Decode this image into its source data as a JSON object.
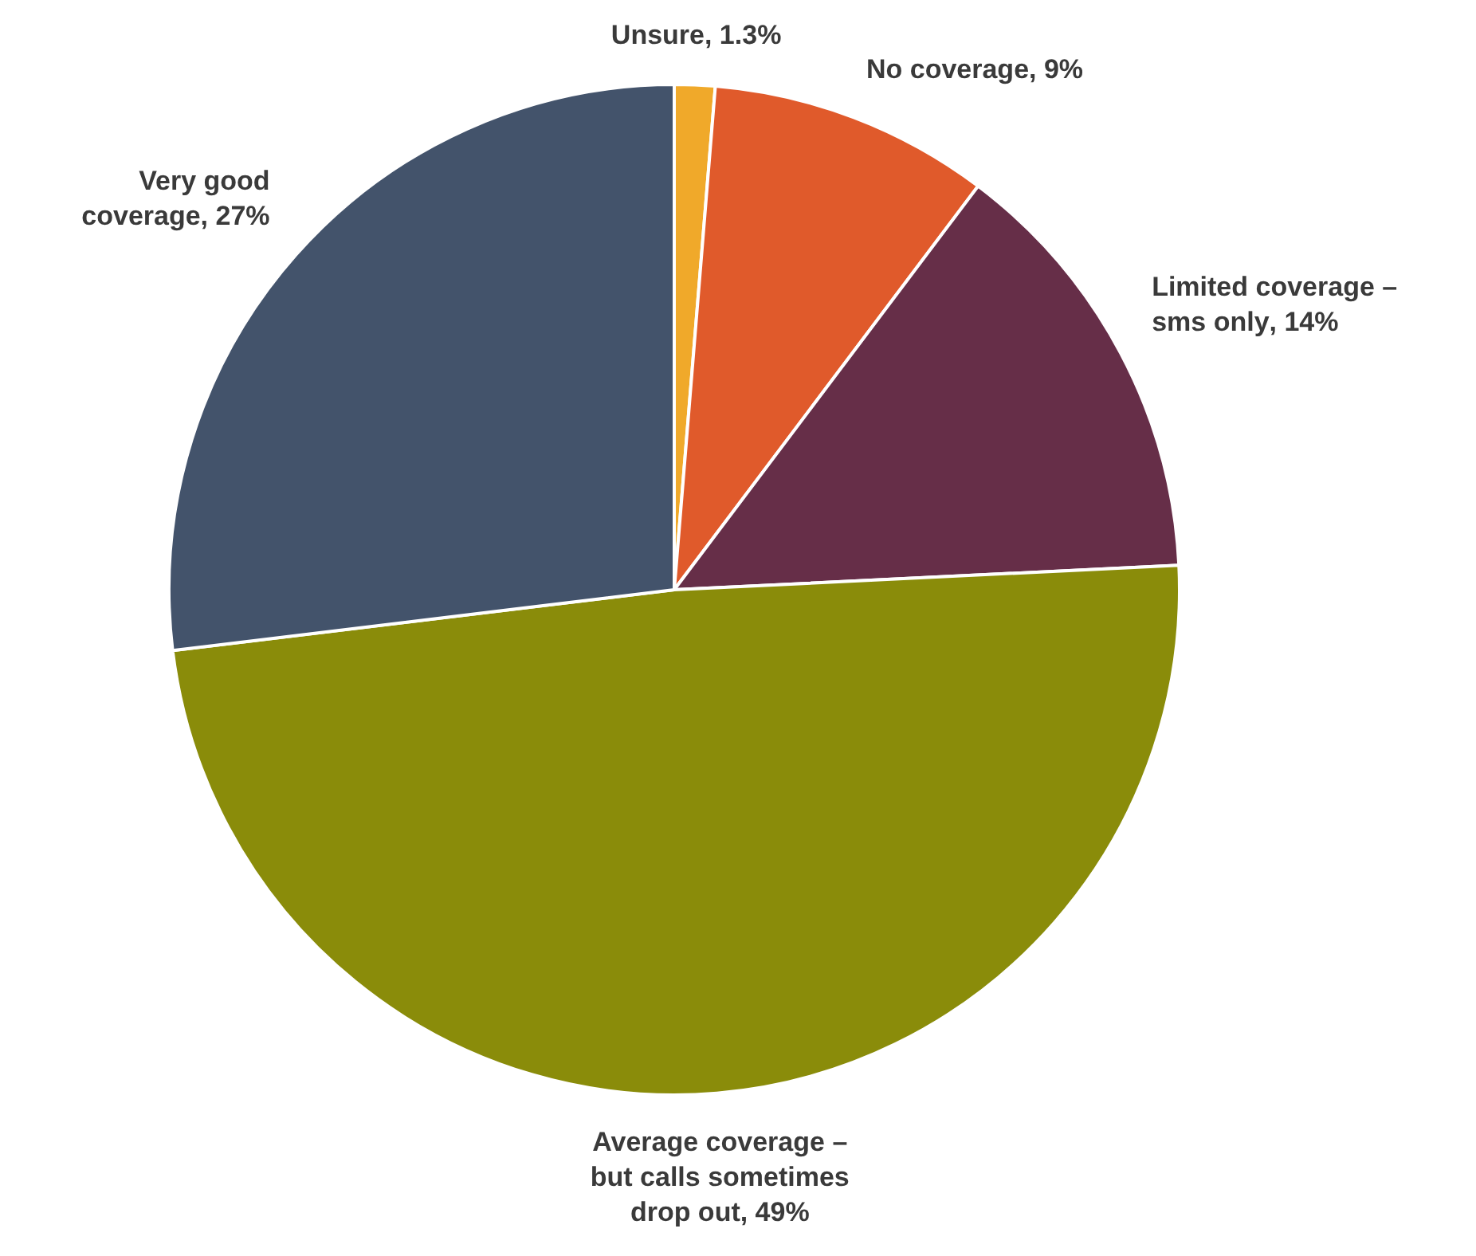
{
  "chart_data": {
    "type": "pie",
    "categories": [
      "Unsure",
      "No coverage",
      "Limited coverage – sms only",
      "Average coverage – but calls sometimes drop out",
      "Very good coverage"
    ],
    "values": [
      1.3,
      9,
      14,
      49,
      27
    ],
    "value_labels": [
      ", 1.3%",
      ", 9%",
      ", 14%",
      ", 49%",
      ", 27%"
    ],
    "colors": [
      "#f0a92a",
      "#e05a2b",
      "#662e48",
      "#8a8c0a",
      "#43536b"
    ],
    "legend": false
  }
}
